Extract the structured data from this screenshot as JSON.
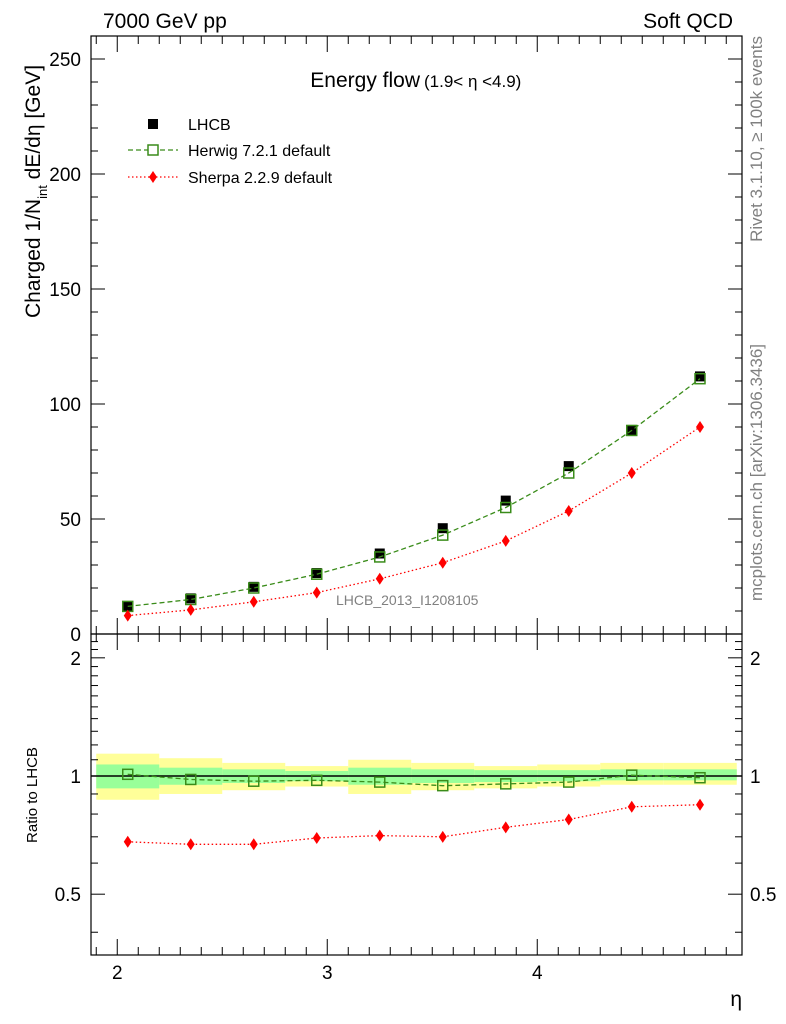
{
  "header": {
    "left": "7000 GeV pp",
    "right": "Soft QCD"
  },
  "side_labels": {
    "rivet": "Rivet 3.1.10, ≥ 100k events",
    "mcplots": "mcplots.cern.ch [arXiv:1306.3436]"
  },
  "chart_data": [
    {
      "type": "line",
      "title": "Energy flow",
      "title_suffix": "(1.9< η <4.9)",
      "analysis_label": "LHCB_2013_I1208105",
      "xlabel": "η",
      "ylabel_parts": [
        "Charged 1/N",
        "int",
        " dE/dη [GeV]"
      ],
      "xlim": [
        1.875,
        4.975
      ],
      "ylim": [
        0,
        260
      ],
      "x_ticks": [
        2,
        3,
        4
      ],
      "y_ticks": [
        0,
        50,
        100,
        150,
        200,
        250
      ],
      "x": [
        2.05,
        2.35,
        2.65,
        2.95,
        3.25,
        3.55,
        3.85,
        4.15,
        4.45,
        4.775
      ],
      "legend_position": "top-left",
      "series": [
        {
          "name": "LHCB",
          "style": "data",
          "color": "#000000",
          "values": [
            12,
            15.5,
            20.5,
            26.5,
            35,
            46,
            58,
            73,
            88.5,
            112
          ]
        },
        {
          "name": "Herwig 7.2.1 default",
          "style": "open-square-dashed",
          "color": "#3a8c1a",
          "values": [
            12,
            15,
            20,
            26,
            33.5,
            43,
            55,
            70,
            88.5,
            111
          ]
        },
        {
          "name": "Sherpa 2.2.9 default",
          "style": "diamond-dotted",
          "color": "#ff0000",
          "values": [
            8,
            10.5,
            14,
            18,
            24,
            31,
            40.5,
            53.5,
            70,
            90
          ]
        }
      ]
    },
    {
      "type": "line",
      "ylabel": "Ratio to LHCB",
      "xlabel": "η",
      "xlim": [
        1.875,
        4.975
      ],
      "ylim": [
        0.35,
        2.3
      ],
      "x_ticks": [
        2,
        3,
        4
      ],
      "y_ticks": [
        0.5,
        1,
        2
      ],
      "y_tick_labels": [
        "0.5",
        "1",
        "2"
      ],
      "x": [
        2.05,
        2.35,
        2.65,
        2.95,
        3.25,
        3.55,
        3.85,
        4.15,
        4.45,
        4.775
      ],
      "bin_edges": [
        1.9,
        2.2,
        2.5,
        2.8,
        3.1,
        3.4,
        3.7,
        4.0,
        4.3,
        4.6,
        4.95
      ],
      "band_yellow": [
        [
          0.87,
          1.14
        ],
        [
          0.9,
          1.11
        ],
        [
          0.92,
          1.08
        ],
        [
          0.94,
          1.06
        ],
        [
          0.9,
          1.1
        ],
        [
          0.92,
          1.08
        ],
        [
          0.93,
          1.06
        ],
        [
          0.94,
          1.07
        ],
        [
          0.95,
          1.08
        ],
        [
          0.95,
          1.08
        ]
      ],
      "band_green": [
        [
          0.93,
          1.07
        ],
        [
          0.95,
          1.05
        ],
        [
          0.96,
          1.04
        ],
        [
          0.97,
          1.03
        ],
        [
          0.95,
          1.05
        ],
        [
          0.96,
          1.04
        ],
        [
          0.965,
          1.035
        ],
        [
          0.97,
          1.035
        ],
        [
          0.975,
          1.04
        ],
        [
          0.975,
          1.04
        ]
      ],
      "series": [
        {
          "name": "Herwig 7.2.1 default",
          "style": "open-square-dashed",
          "color": "#3a8c1a",
          "values": [
            1.01,
            0.98,
            0.97,
            0.975,
            0.965,
            0.945,
            0.955,
            0.965,
            1.005,
            0.99
          ]
        },
        {
          "name": "Sherpa 2.2.9 default",
          "style": "diamond-dotted",
          "color": "#ff0000",
          "values": [
            0.68,
            0.67,
            0.67,
            0.695,
            0.705,
            0.7,
            0.74,
            0.775,
            0.835,
            0.845
          ]
        }
      ]
    }
  ]
}
